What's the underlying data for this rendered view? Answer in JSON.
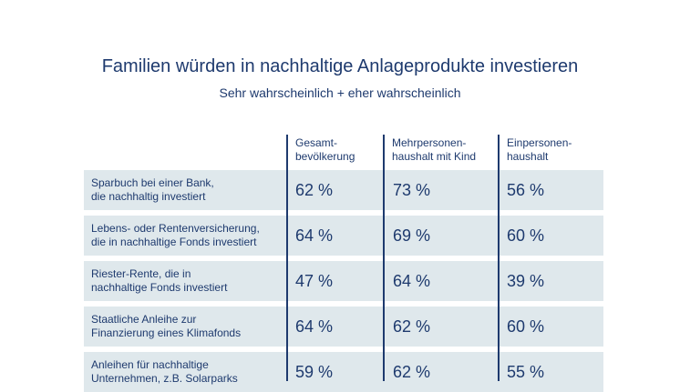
{
  "title": "Familien würden in nachhaltige Anlageprodukte investieren",
  "subtitle": "Sehr wahrscheinlich + eher wahrscheinlich",
  "columns": [
    "Gesamt-\nbevölkerung",
    "Mehrpersonen-\nhaushalt mit Kind",
    "Einpersonen-\nhaushalt"
  ],
  "rows": [
    {
      "label": "Sparbuch bei einer Bank,\ndie nachhaltig investiert",
      "values": [
        "62 %",
        "73 %",
        "56 %"
      ]
    },
    {
      "label": "Lebens- oder Rentenversicherung,\ndie in nachhaltige Fonds investiert",
      "values": [
        "64 %",
        "69 %",
        "60 %"
      ]
    },
    {
      "label": "Riester-Rente, die in\nnachhaltige Fonds investiert",
      "values": [
        "47 %",
        "64 %",
        "39 %"
      ]
    },
    {
      "label": "Staatliche Anleihe zur\nFinanzierung eines Klimafonds",
      "values": [
        "64 %",
        "62 %",
        "60 %"
      ]
    },
    {
      "label": "Anleihen für nachhaltige\nUnternehmen, z.B. Solarparks",
      "values": [
        "59 %",
        "62 %",
        "55 %"
      ]
    }
  ],
  "colors": {
    "text": "#1e3a6e",
    "row_background": "#dfe8ec",
    "divider": "#1e3a6e"
  }
}
